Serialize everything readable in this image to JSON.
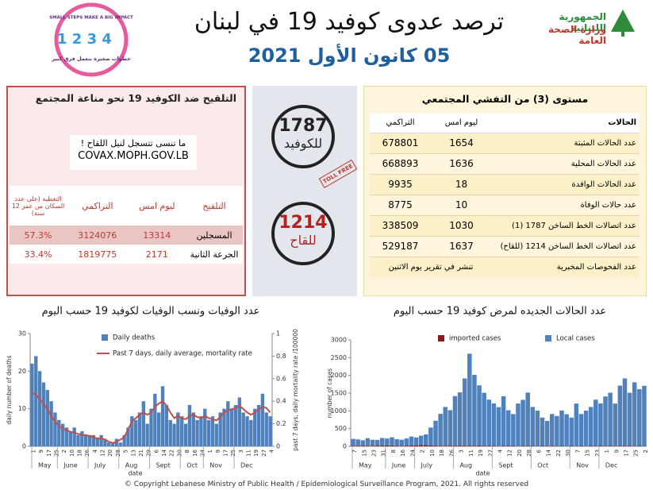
{
  "header": {
    "title": "ترصد عدوى كوفيد 19 في لبنان",
    "date": "05 كانون الأول 2021",
    "republic": "الجمهورية اللبنانية",
    "ministry": "وزارة الصحة العامة",
    "badge_en": "SMALL STEPS MAKE A BIG IMPACT",
    "badge_ar": "خطوات صغيرة بتعمل فرق كبير"
  },
  "vaccination": {
    "title": "التلقيح ضد الكوفيد 19  نحو مناعة المجتمع",
    "reminder": "ما تنسى تتسجل لنيل اللقاح !",
    "website": "COVAX.MOPH.GOV.LB",
    "columns": [
      "التلقيح",
      "ليوم امس",
      "التراكمي",
      "التغطية (على عدد السكان من عمر 12 سنة)"
    ],
    "rows": [
      [
        "المسجلين",
        13314,
        3124076,
        "57.3%"
      ],
      [
        "الجرعة الثانية",
        2171,
        1819775,
        "33.4%"
      ]
    ]
  },
  "hotlines": [
    {
      "number": "1787",
      "label": "للكوفيد"
    },
    {
      "number": "1214",
      "label": "للقاح"
    }
  ],
  "stamp": "TOLL FREE",
  "outbreak": {
    "title": "مستوى (3) من التفشي المجتمعي",
    "columns": [
      "الحالات",
      "ليوم امس",
      "التراكمي"
    ],
    "rows": [
      [
        "عدد الحالات المثبتة",
        1654,
        678801
      ],
      [
        "عدد الحالات المحلية",
        1636,
        668893
      ],
      [
        "عدد الحالات الوافدة",
        18,
        9935
      ],
      [
        "عدد حالات الوفاة",
        10,
        8775
      ],
      [
        "عدد اتصالات الخط الساخن 1787  (1)",
        1030,
        338509
      ],
      [
        "عدد اتصالات الخط الساخن 1214 (للقاح)",
        1637,
        529187
      ]
    ],
    "tests": [
      "عدد الفحوصات المخبرية",
      "تنشر في تقرير يوم الاثنين"
    ]
  },
  "footer": "© Copyright Lebanese Ministry of Public Health / Epidemiological Surveillance Program, 2021. All rights reserved",
  "chart_data": [
    {
      "type": "bar",
      "title": "عدد الوفيات ونسب الوفيات لكوفيد 19 حسب اليوم",
      "xlabel": "date",
      "ylabel": "daily number of deaths",
      "y2label": "past 7 days, daily mortality rate /100000",
      "categories": [
        "1",
        null,
        "9",
        null,
        "17",
        null,
        "25",
        null,
        "2",
        null,
        "10",
        null,
        "18",
        null,
        "26",
        null,
        "4",
        null,
        "12",
        null,
        "20",
        null,
        "28",
        null,
        "5",
        null,
        "13",
        null,
        "21",
        null,
        "29",
        null,
        "6",
        null,
        "14",
        null,
        "22",
        null,
        "30",
        null,
        "8",
        null,
        "16",
        null,
        "24",
        null,
        "1",
        null,
        "9",
        null,
        "17",
        null,
        "25",
        null,
        "3",
        null,
        "11",
        null,
        "19",
        null,
        "27",
        null,
        "4"
      ],
      "months": [
        "May",
        "June",
        "July",
        "Aug",
        "Sept",
        "Oct",
        "Nov",
        "Dec"
      ],
      "ylim": [
        0,
        30
      ],
      "yticks": [
        0,
        10,
        20,
        30
      ],
      "y2lim": [
        0,
        1
      ],
      "y2ticks": [
        0,
        0.2,
        0.4,
        0.6,
        0.8,
        1
      ],
      "stacked": false,
      "series": [
        {
          "name": "Daily deaths",
          "type": "bar",
          "color": "#4f81bd",
          "values": [
            22,
            24,
            20,
            17,
            15,
            12,
            9,
            7,
            6,
            5,
            4,
            5,
            3,
            4,
            3,
            3,
            3,
            2,
            3,
            2,
            1,
            1,
            2,
            1,
            3,
            5,
            8,
            7,
            9,
            12,
            6,
            10,
            14,
            9,
            16,
            11,
            7,
            6,
            9,
            8,
            6,
            11,
            9,
            7,
            8,
            10,
            7,
            8,
            6,
            9,
            10,
            12,
            10,
            11,
            13,
            9,
            8,
            7,
            10,
            11,
            14,
            9,
            8
          ]
        },
        {
          "name": "Past 7 days, daily average, mortality rate",
          "type": "line",
          "axis": "y2",
          "color": "#c0504d",
          "values": [
            0.47,
            0.46,
            0.42,
            0.38,
            0.33,
            0.27,
            0.22,
            0.18,
            0.16,
            0.14,
            0.13,
            0.12,
            0.11,
            0.1,
            0.1,
            0.09,
            0.08,
            0.07,
            0.07,
            0.06,
            0.04,
            0.03,
            0.04,
            0.06,
            0.08,
            0.15,
            0.22,
            0.25,
            0.28,
            0.3,
            0.28,
            0.3,
            0.35,
            0.38,
            0.4,
            0.36,
            0.3,
            0.25,
            0.27,
            0.25,
            0.24,
            0.27,
            0.28,
            0.26,
            0.25,
            0.27,
            0.25,
            0.24,
            0.23,
            0.26,
            0.3,
            0.32,
            0.33,
            0.34,
            0.36,
            0.33,
            0.3,
            0.28,
            0.3,
            0.33,
            0.35,
            0.34,
            0.3
          ]
        }
      ]
    },
    {
      "type": "bar",
      "title": "عدد الحالات الجديده لمرض كوفيد 19 حسب اليوم",
      "xlabel": "date",
      "ylabel": "number of cases",
      "categories": [
        "7",
        null,
        "15",
        null,
        "23",
        null,
        "31",
        null,
        "8",
        null,
        "16",
        null,
        "24",
        null,
        "2",
        null,
        "10",
        null,
        "18",
        null,
        "26",
        null,
        "3",
        null,
        "11",
        null,
        "19",
        null,
        "27",
        null,
        "4",
        null,
        "12",
        null,
        "20",
        null,
        "28",
        null,
        "6",
        null,
        "14",
        null,
        "22",
        null,
        "30",
        null,
        "7",
        null,
        "15",
        null,
        "23",
        null,
        "1",
        null,
        "9",
        null,
        "17",
        null,
        "25",
        null,
        "2"
      ],
      "months": [
        "May",
        "June",
        "July",
        "Aug",
        "Sept",
        "Oct",
        "Nov",
        "Dec"
      ],
      "ylim": [
        0,
        3000
      ],
      "yticks": [
        0,
        500,
        1000,
        1500,
        2000,
        2500,
        3000
      ],
      "stacked": true,
      "series": [
        {
          "name": "imported cases",
          "type": "bar",
          "color": "#8b1a1a",
          "values": [
            10,
            15,
            20,
            10,
            15,
            20,
            25,
            30,
            25,
            20,
            15,
            20,
            25,
            30,
            40,
            35,
            30,
            20,
            15,
            10,
            20,
            15,
            20,
            15,
            10,
            15,
            20,
            10,
            15,
            10,
            5,
            10,
            15,
            10,
            5,
            10,
            15,
            10,
            5,
            10,
            15,
            10,
            5,
            10,
            5,
            10,
            5,
            10,
            5,
            10,
            15,
            10,
            5,
            10,
            5,
            10,
            15,
            10,
            5,
            10,
            5
          ]
        },
        {
          "name": "Local cases",
          "type": "bar",
          "color": "#4f81bd",
          "values": [
            200,
            180,
            150,
            220,
            170,
            160,
            210,
            190,
            230,
            180,
            170,
            200,
            250,
            220,
            260,
            300,
            500,
            700,
            900,
            1100,
            1000,
            1400,
            1500,
            1900,
            2600,
            2000,
            1700,
            1500,
            1300,
            1200,
            1100,
            1400,
            1000,
            900,
            1200,
            1300,
            1500,
            1100,
            1000,
            800,
            700,
            900,
            850,
            1000,
            900,
            800,
            1200,
            900,
            1000,
            1100,
            1300,
            1200,
            1400,
            1500,
            1200,
            1700,
            1900,
            1500,
            1800,
            1600,
            1700
          ]
        }
      ]
    }
  ]
}
